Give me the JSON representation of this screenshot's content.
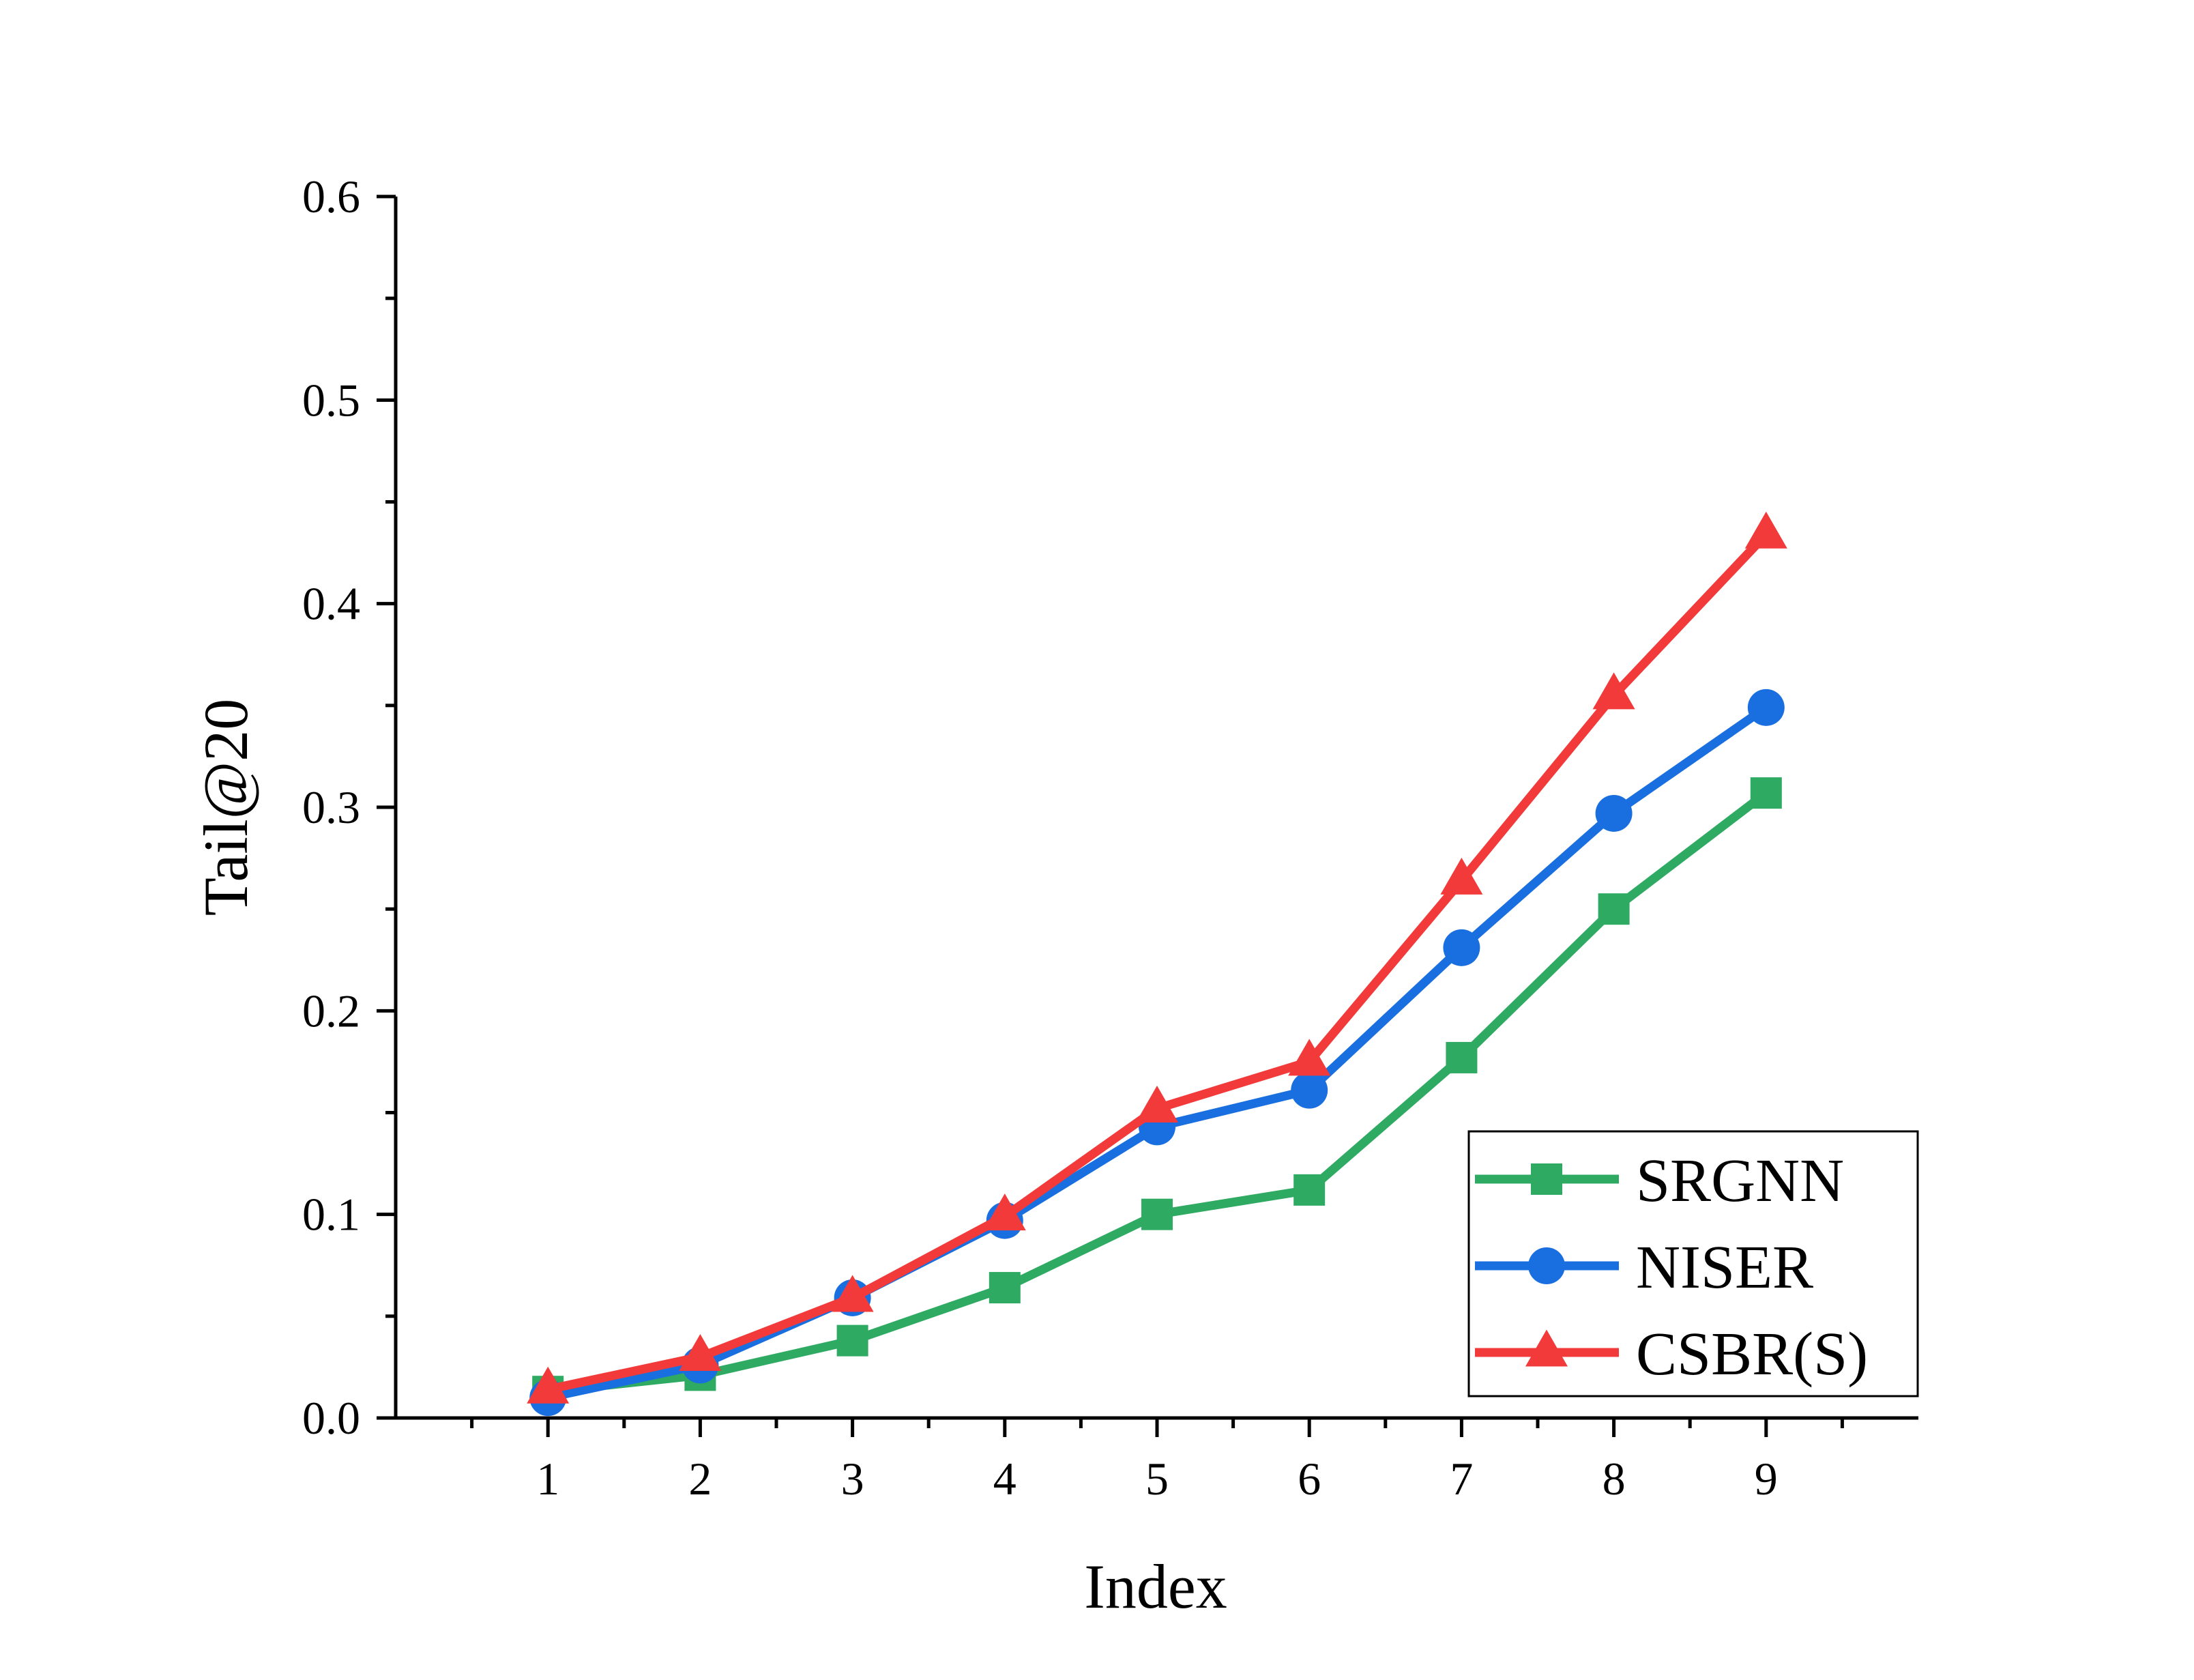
{
  "chart_data": {
    "type": "line",
    "title": "",
    "xlabel": "Index",
    "ylabel": "Tail@20",
    "x": [
      1,
      2,
      3,
      4,
      5,
      6,
      7,
      8,
      9
    ],
    "x_tick_labels": [
      "1",
      "2",
      "3",
      "4",
      "5",
      "6",
      "7",
      "8",
      "9"
    ],
    "xlim": [
      0,
      10
    ],
    "ylim": [
      0.0,
      0.6
    ],
    "y_ticks": [
      0.0,
      0.1,
      0.2,
      0.3,
      0.4,
      0.5,
      0.6
    ],
    "y_tick_labels": [
      "0.0",
      "0.1",
      "0.2",
      "0.3",
      "0.4",
      "0.5",
      "0.6"
    ],
    "grid": false,
    "legend_position": "bottom-right",
    "series": [
      {
        "name": "SRGNN",
        "marker": "square",
        "color": "#2EAA62",
        "values": [
          0.013,
          0.021,
          0.038,
          0.064,
          0.1,
          0.112,
          0.177,
          0.25,
          0.307
        ]
      },
      {
        "name": "NISER",
        "marker": "circle",
        "color": "#1A6FE0",
        "values": [
          0.01,
          0.026,
          0.059,
          0.097,
          0.143,
          0.161,
          0.231,
          0.297,
          0.349
        ]
      },
      {
        "name": "CSBR(S)",
        "marker": "triangle",
        "color": "#F23A3A",
        "values": [
          0.014,
          0.03,
          0.059,
          0.099,
          0.152,
          0.175,
          0.264,
          0.355,
          0.434
        ]
      }
    ]
  }
}
